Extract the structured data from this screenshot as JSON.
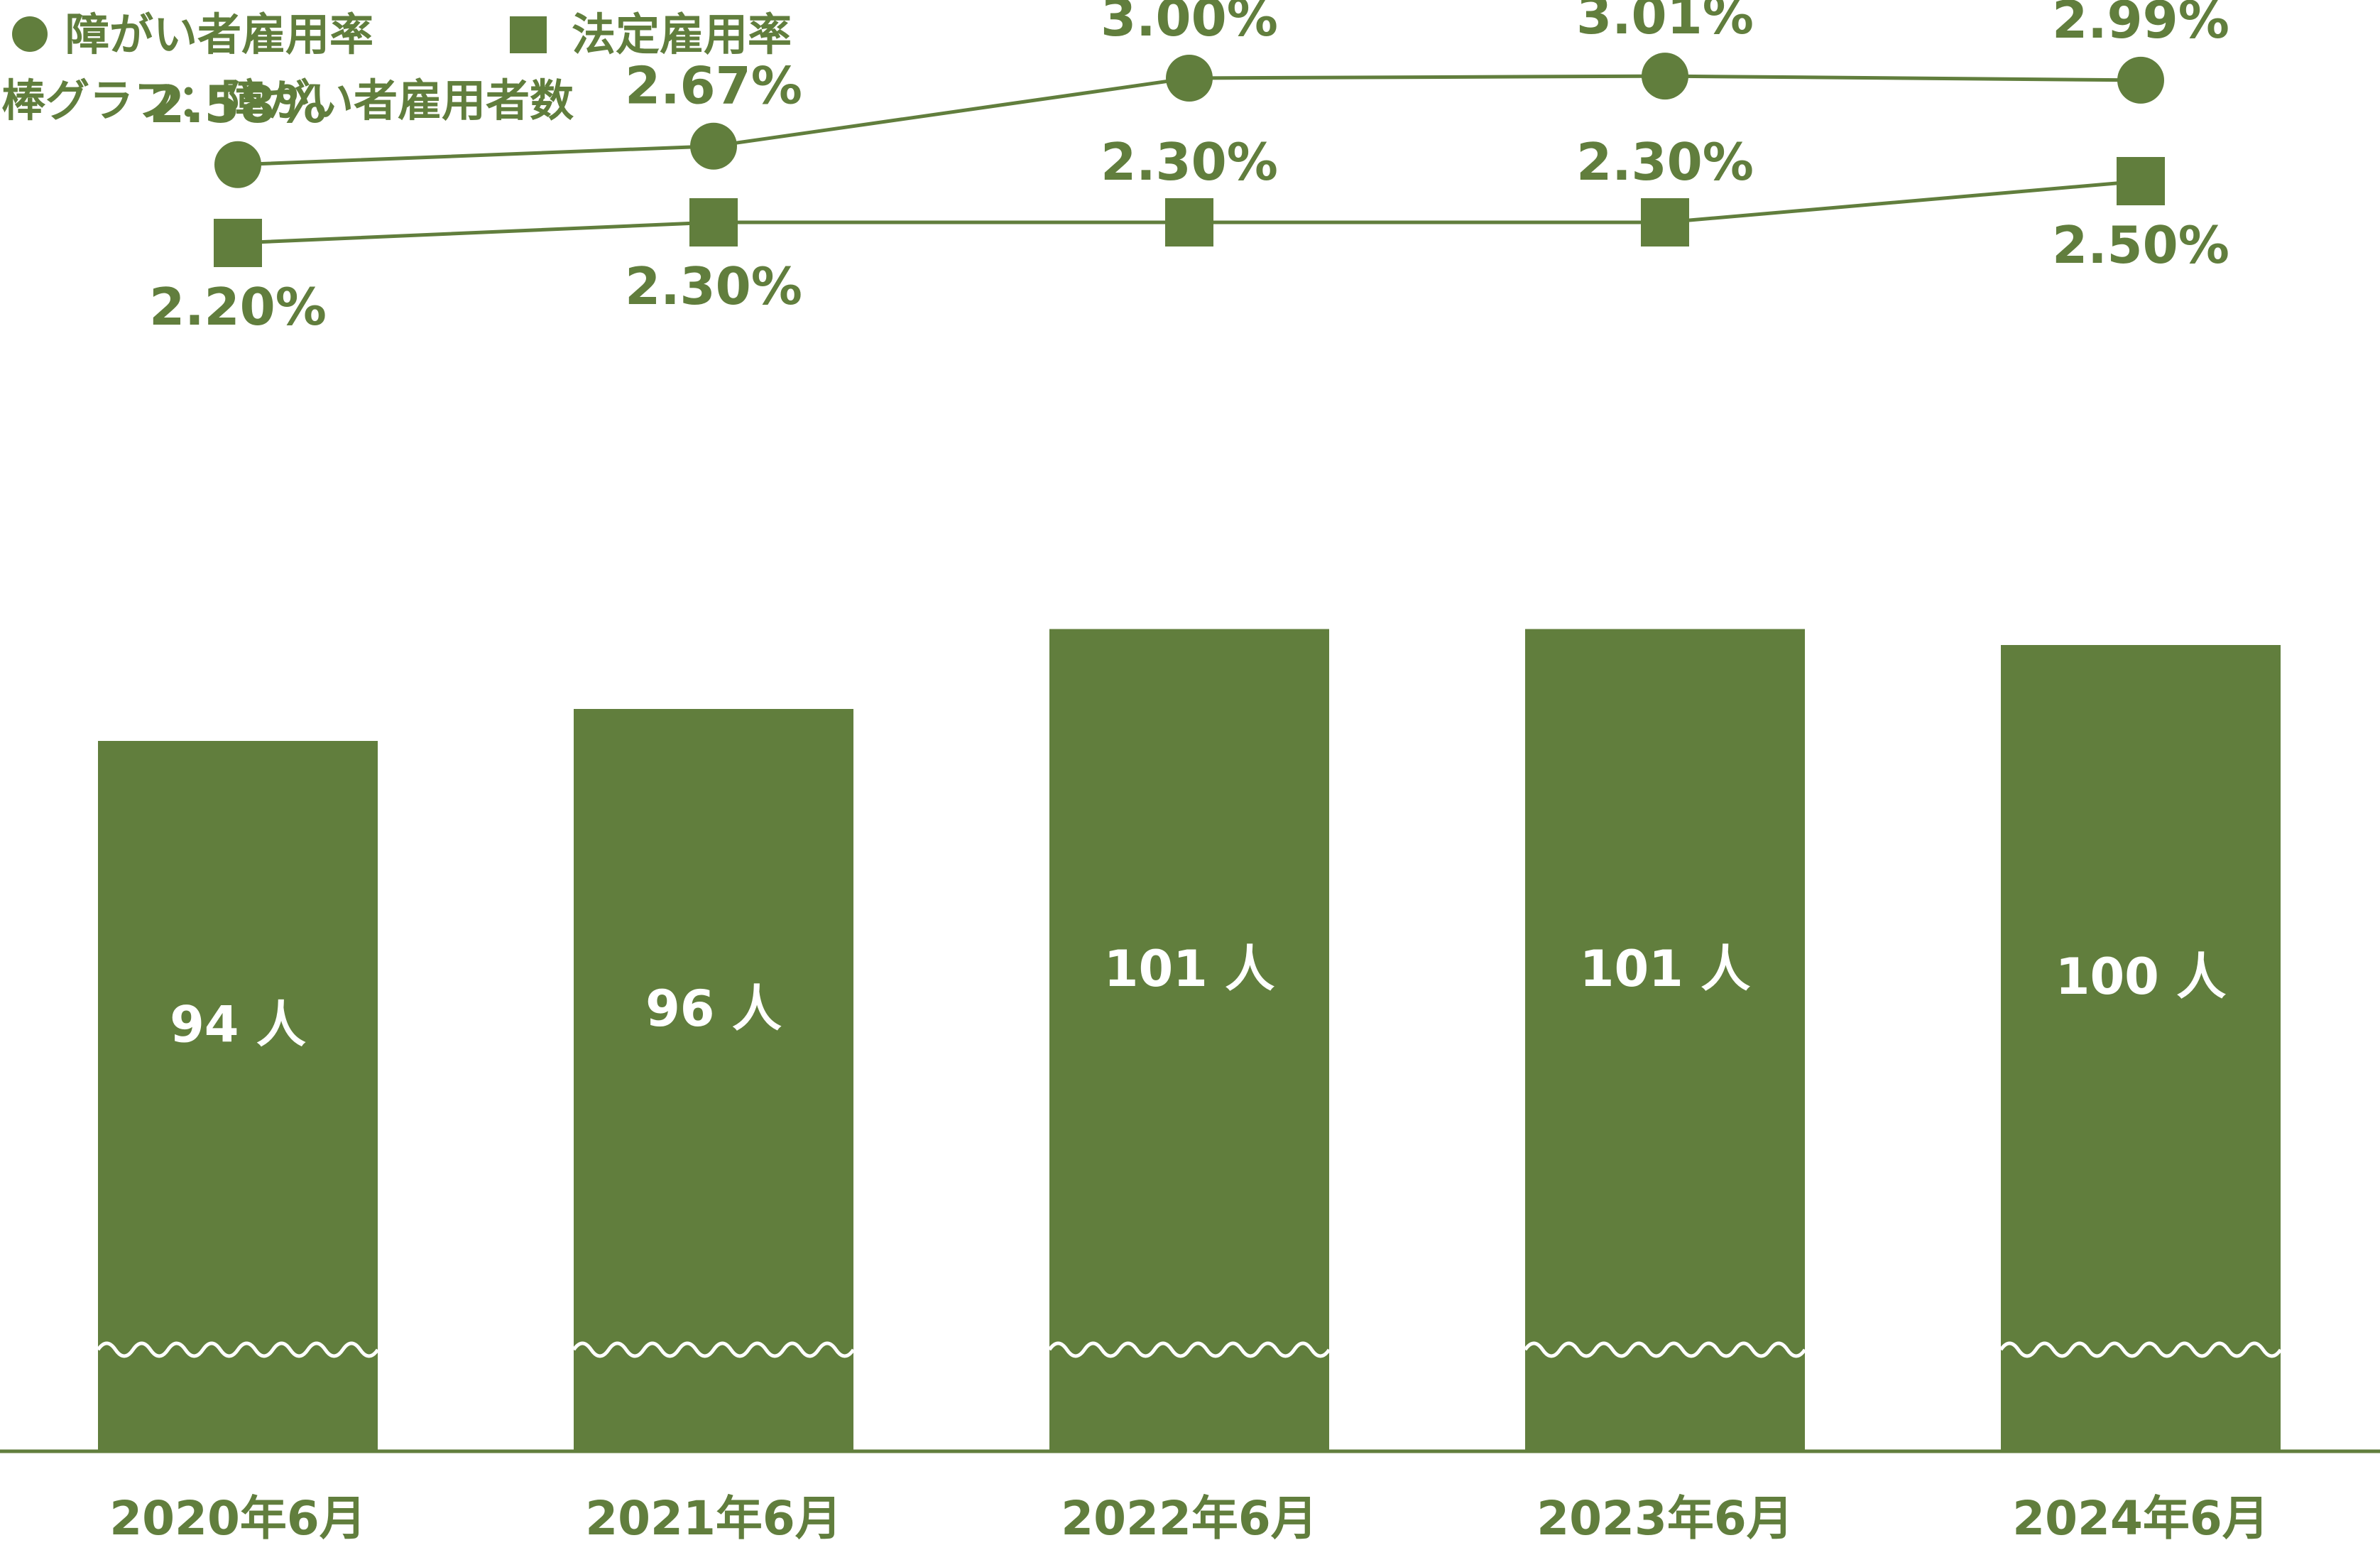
{
  "legend": {
    "rate_label": "障がい者雇用率",
    "legal_label": "法定雇用率",
    "bar_note": "棒グラフ：障がい者雇用者数"
  },
  "colors": {
    "green": "#617e3d",
    "white": "#ffffff"
  },
  "chart_data": {
    "type": "bar",
    "categories": [
      "2020年6月",
      "2021年6月",
      "2022年6月",
      "2023年6月",
      "2024年6月"
    ],
    "bars": {
      "name": "障がい者雇用者数",
      "values": [
        94,
        96,
        101,
        101,
        100
      ],
      "labels": [
        "94 人",
        "96 人",
        "101 人",
        "101 人",
        "100 人"
      ],
      "axis_break": true
    },
    "lines": [
      {
        "name": "障がい者雇用率",
        "marker": "circle",
        "values": [
          2.58,
          2.67,
          3.0,
          3.01,
          2.99
        ],
        "labels": [
          "2.58%",
          "2.67%",
          "3.00%",
          "3.01%",
          "2.99%"
        ]
      },
      {
        "name": "法定雇用率",
        "marker": "square",
        "values": [
          2.2,
          2.3,
          2.3,
          2.3,
          2.5
        ],
        "labels": [
          "2.20%",
          "2.30%",
          "2.30%",
          "2.30%",
          "2.50%"
        ]
      }
    ]
  }
}
